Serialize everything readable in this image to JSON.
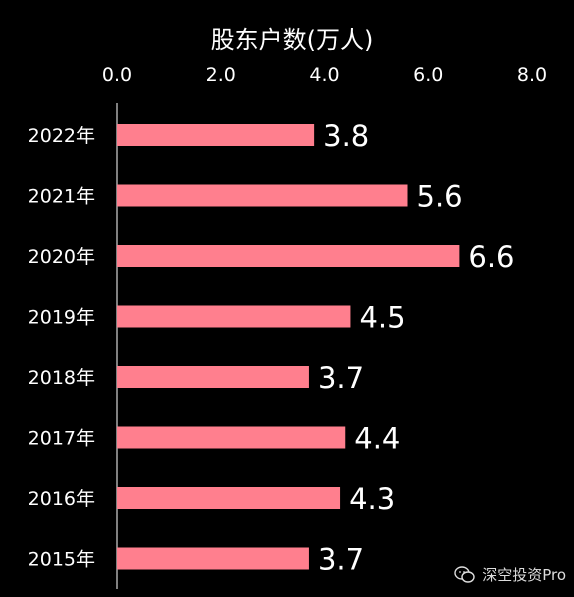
{
  "chart_data": {
    "type": "bar",
    "orientation": "horizontal",
    "title": "股东户数(万人)",
    "categories": [
      "2022年",
      "2021年",
      "2020年",
      "2019年",
      "2018年",
      "2017年",
      "2016年",
      "2015年"
    ],
    "values": [
      3.8,
      5.6,
      6.6,
      4.5,
      3.7,
      4.4,
      4.3,
      3.7
    ],
    "data_labels": [
      "3.8",
      "5.6",
      "6.6",
      "4.5",
      "3.7",
      "4.4",
      "4.3",
      "3.7"
    ],
    "xlim": [
      0,
      8
    ],
    "xticks": [
      "0.0",
      "2.0",
      "4.0",
      "6.0",
      "8.0"
    ],
    "xaxis_position": "top",
    "grid": false,
    "bar_color": "#ff7f8e",
    "background": "#000000"
  },
  "watermark": {
    "text": "深空投资Pro",
    "icon": "wechat-icon"
  }
}
